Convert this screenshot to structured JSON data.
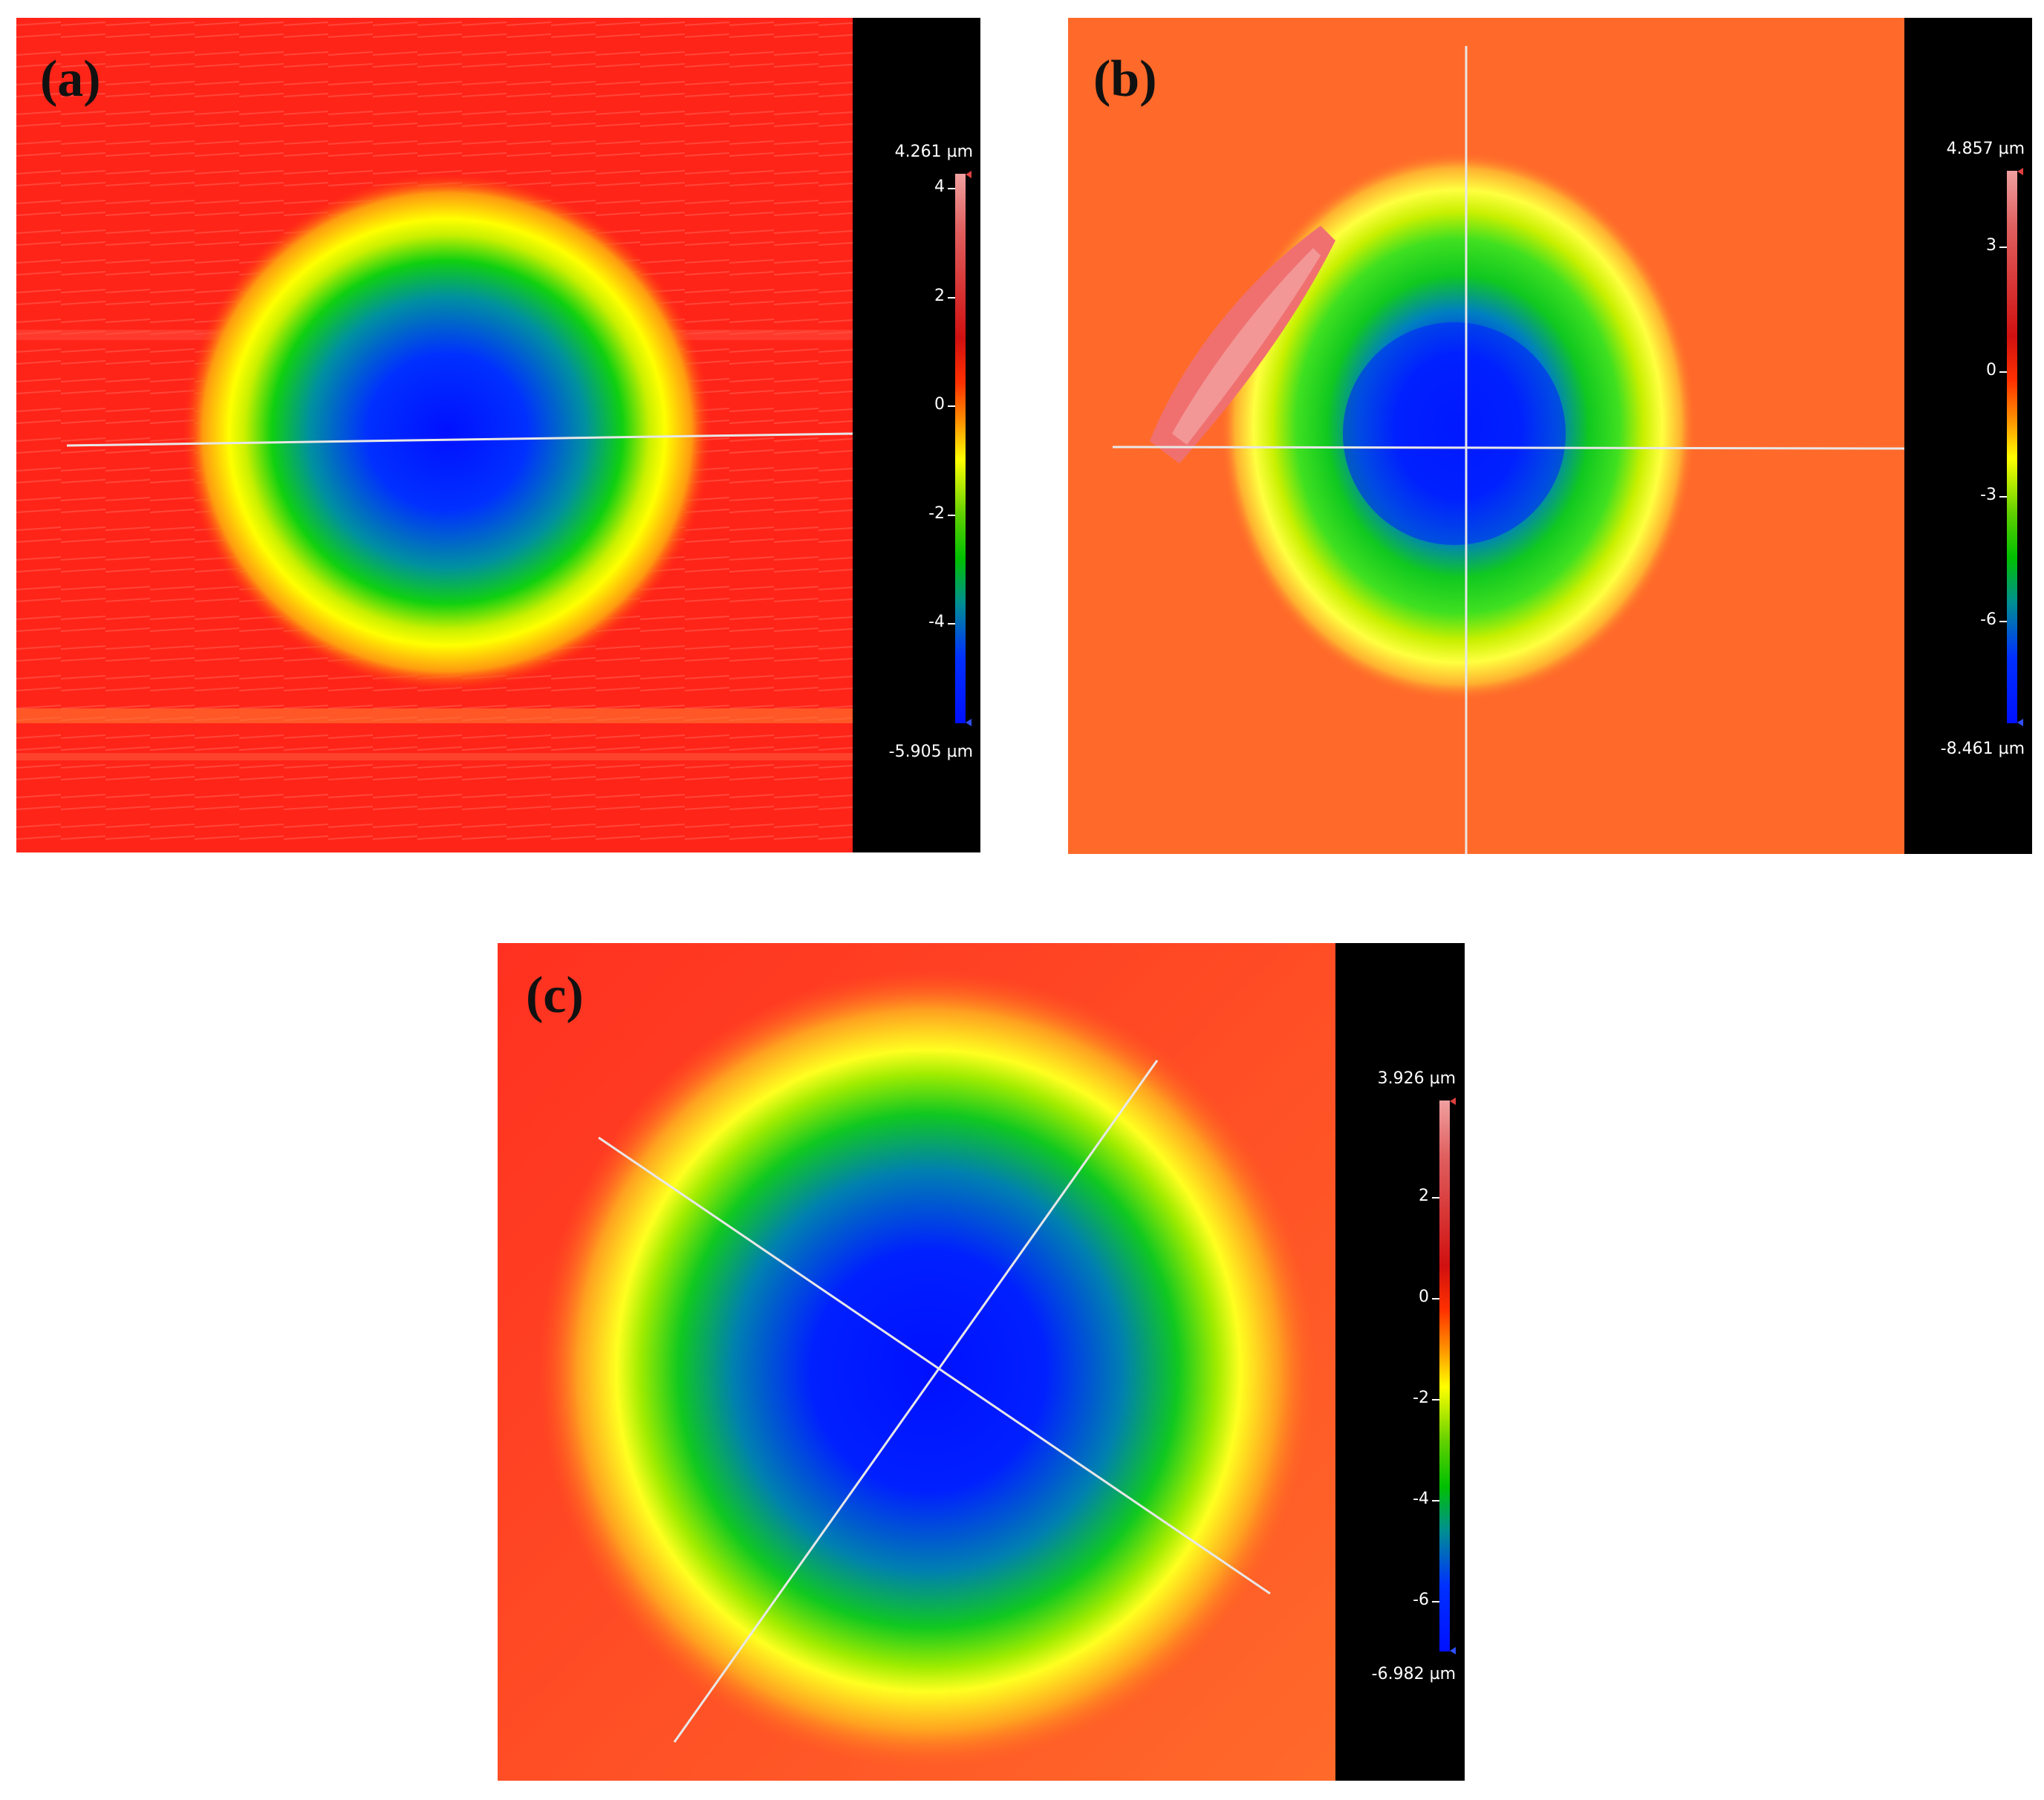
{
  "panels": {
    "a": {
      "label": "(a)",
      "scale": {
        "max": "4.261 µm",
        "min": "-5.905 µm",
        "ticks": [
          "4",
          "2",
          "0",
          "-2",
          "-4"
        ]
      }
    },
    "b": {
      "label": "(b)",
      "scale": {
        "max": "4.857 µm",
        "min": "-8.461 µm",
        "ticks": [
          "3",
          "0",
          "-3",
          "-6"
        ]
      }
    },
    "c": {
      "label": "(c)",
      "scale": {
        "max": "3.926 µm",
        "min": "-6.982 µm",
        "ticks": [
          "2",
          "0",
          "-2",
          "-4",
          "-6"
        ]
      }
    }
  },
  "colors": {
    "high": "#f0a0a0",
    "surface_a": "#ff2a1a",
    "surface_b": "#ff6a2a",
    "surface_c": "#ff5a22",
    "mid_yellow": "#ffff00",
    "mid_green": "#00d000",
    "low_blue": "#0010ff",
    "profile_line": "#e8e8e8",
    "bar_background": "#000000"
  }
}
